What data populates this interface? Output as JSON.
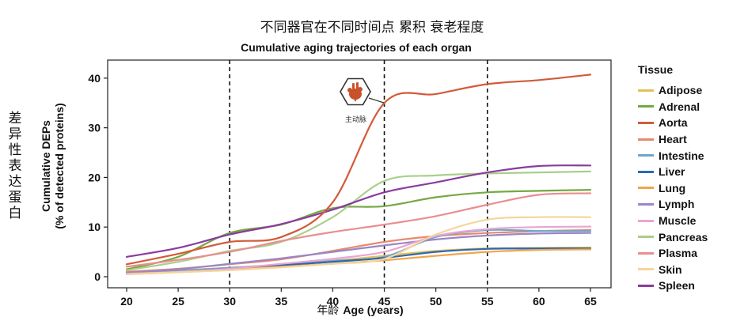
{
  "page": {
    "cn_title": "不同器官在不同时间点 累积 衰老程度",
    "cn_ylabel": "差异性表达蛋白",
    "cn_xlabel": "年龄",
    "annotation_label": "主动脉",
    "annotation_icon": "heart-organ-icon"
  },
  "chart_data": {
    "type": "line",
    "title": "Cumulative aging trajectories of each organ",
    "xlabel": "Age (years)",
    "ylabel_line1": "Cumulative DEPs",
    "ylabel_line2": "(% of detected proteins)",
    "xlim": [
      20,
      65
    ],
    "ylim": [
      0,
      43
    ],
    "xticks": [
      20,
      25,
      30,
      35,
      40,
      45,
      50,
      55,
      60,
      65
    ],
    "yticks": [
      0,
      10,
      20,
      30,
      40
    ],
    "vlines": [
      30,
      45,
      55
    ],
    "legend_title": "Tissue",
    "x": [
      20,
      25,
      30,
      35,
      40,
      45,
      50,
      55,
      60,
      65
    ],
    "series": [
      {
        "name": "Adipose",
        "color": "#e3c15a",
        "values": [
          1.0,
          1.3,
          1.8,
          2.4,
          3.2,
          4.2,
          5.2,
          5.7,
          5.8,
          5.9
        ]
      },
      {
        "name": "Adrenal",
        "color": "#76a844",
        "values": [
          1.5,
          4.0,
          8.8,
          10.5,
          13.8,
          14.2,
          16.0,
          17.0,
          17.3,
          17.5
        ]
      },
      {
        "name": "Aorta",
        "color": "#d35a3a",
        "values": [
          2.5,
          4.6,
          7.0,
          8.0,
          15.0,
          35.0,
          36.8,
          38.8,
          39.6,
          40.7
        ]
      },
      {
        "name": "Heart",
        "color": "#e88a6c",
        "values": [
          1.0,
          1.6,
          2.5,
          3.5,
          5.2,
          7.0,
          8.2,
          8.8,
          9.2,
          9.4
        ]
      },
      {
        "name": "Intestine",
        "color": "#6fa6c8",
        "values": [
          0.8,
          1.2,
          1.8,
          2.4,
          3.2,
          4.0,
          8.0,
          9.4,
          9.2,
          9.2
        ]
      },
      {
        "name": "Liver",
        "color": "#2f68b0",
        "values": [
          0.6,
          1.0,
          1.6,
          2.3,
          3.0,
          3.8,
          5.0,
          5.6,
          5.7,
          5.7
        ]
      },
      {
        "name": "Lung",
        "color": "#efa64c",
        "values": [
          0.5,
          0.9,
          1.4,
          2.0,
          2.6,
          3.3,
          4.2,
          5.0,
          5.4,
          5.5
        ]
      },
      {
        "name": "Lymph",
        "color": "#9a86c8",
        "values": [
          0.8,
          1.5,
          2.6,
          3.7,
          5.0,
          6.3,
          7.5,
          8.3,
          8.7,
          8.8
        ]
      },
      {
        "name": "Muscle",
        "color": "#eaa5d2",
        "values": [
          0.6,
          1.0,
          1.6,
          2.6,
          3.6,
          5.0,
          8.2,
          9.6,
          10.0,
          10.1
        ]
      },
      {
        "name": "Pancreas",
        "color": "#a9cf8c",
        "values": [
          1.3,
          3.0,
          5.2,
          7.0,
          12.0,
          19.3,
          20.4,
          20.8,
          21.0,
          21.2
        ]
      },
      {
        "name": "Plasma",
        "color": "#ea8e8e",
        "values": [
          2.0,
          3.4,
          5.0,
          7.2,
          9.0,
          10.5,
          12.2,
          14.5,
          16.5,
          16.8
        ]
      },
      {
        "name": "Skin",
        "color": "#f5d59a",
        "values": [
          0.5,
          0.9,
          1.3,
          1.9,
          2.6,
          3.6,
          8.5,
          11.5,
          12.0,
          12.0
        ]
      },
      {
        "name": "Spleen",
        "color": "#8a3b9e",
        "values": [
          4.0,
          5.8,
          8.5,
          10.6,
          13.5,
          17.0,
          19.0,
          21.0,
          22.3,
          22.4
        ]
      }
    ]
  }
}
